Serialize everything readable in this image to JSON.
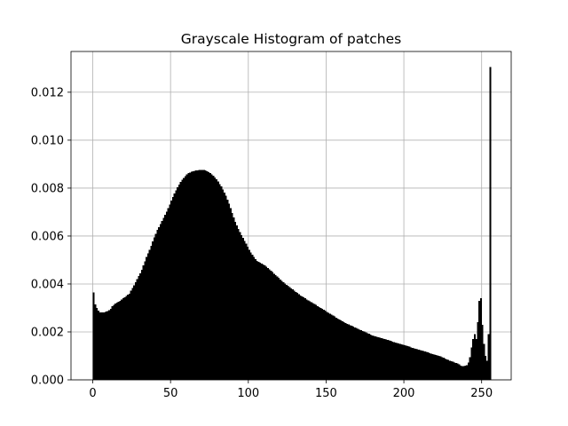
{
  "chart_data": {
    "type": "bar",
    "title": "Grayscale Histogram of patches",
    "xlabel": "",
    "ylabel": "",
    "xlim": [
      -14,
      269
    ],
    "ylim": [
      0,
      0.0137
    ],
    "grid": true,
    "bar_color": "#000000",
    "grid_color": "#b0b0b0",
    "x_ticks": [
      0,
      50,
      100,
      150,
      200,
      250
    ],
    "y_ticks": [
      0.0,
      0.002,
      0.004,
      0.006,
      0.008,
      0.01,
      0.012
    ],
    "x_tick_labels": [
      "0",
      "50",
      "100",
      "150",
      "200",
      "250"
    ],
    "y_tick_labels": [
      "0.000",
      "0.002",
      "0.004",
      "0.006",
      "0.008",
      "0.010",
      "0.012"
    ],
    "bins": 256,
    "bin_start": 0,
    "bin_width": 1,
    "values": [
      0.00365,
      0.00315,
      0.003,
      0.00288,
      0.00282,
      0.00282,
      0.00281,
      0.00282,
      0.00285,
      0.00287,
      0.0029,
      0.00297,
      0.00307,
      0.00313,
      0.00318,
      0.00322,
      0.00325,
      0.0033,
      0.00336,
      0.0034,
      0.00345,
      0.0035,
      0.00355,
      0.0036,
      0.00372,
      0.00383,
      0.00395,
      0.00408,
      0.00421,
      0.00433,
      0.00445,
      0.0046,
      0.00477,
      0.00495,
      0.00512,
      0.00527,
      0.00543,
      0.0056,
      0.00578,
      0.00595,
      0.0061,
      0.00625,
      0.00637,
      0.0065,
      0.00662,
      0.00675,
      0.00688,
      0.00702,
      0.00716,
      0.00732,
      0.00748,
      0.00763,
      0.00777,
      0.0079,
      0.00803,
      0.00815,
      0.00825,
      0.00835,
      0.00843,
      0.0085,
      0.00857,
      0.00862,
      0.00865,
      0.00868,
      0.0087,
      0.00872,
      0.00873,
      0.00874,
      0.00875,
      0.00876,
      0.00876,
      0.00875,
      0.00873,
      0.0087,
      0.00866,
      0.00862,
      0.00857,
      0.00851,
      0.00844,
      0.00836,
      0.00827,
      0.00817,
      0.00807,
      0.00795,
      0.00782,
      0.00768,
      0.00752,
      0.00735,
      0.00717,
      0.00697,
      0.00677,
      0.0066,
      0.00645,
      0.0063,
      0.00617,
      0.00604,
      0.00592,
      0.0058,
      0.00568,
      0.00556,
      0.00543,
      0.00532,
      0.00522,
      0.00512,
      0.00504,
      0.00497,
      0.00492,
      0.00488,
      0.00485,
      0.00482,
      0.00478,
      0.00473,
      0.00467,
      0.00461,
      0.00455,
      0.00449,
      0.00443,
      0.00437,
      0.00431,
      0.00425,
      0.00419,
      0.00413,
      0.00407,
      0.00402,
      0.00397,
      0.00392,
      0.00387,
      0.00382,
      0.00377,
      0.00372,
      0.00367,
      0.00362,
      0.00357,
      0.00352,
      0.00348,
      0.00344,
      0.0034,
      0.00336,
      0.00332,
      0.00328,
      0.00324,
      0.0032,
      0.00316,
      0.00312,
      0.00308,
      0.00304,
      0.003,
      0.00296,
      0.00292,
      0.00288,
      0.00284,
      0.0028,
      0.00276,
      0.00272,
      0.00268,
      0.00264,
      0.0026,
      0.00256,
      0.00252,
      0.00248,
      0.00244,
      0.0024,
      0.00237,
      0.00234,
      0.00231,
      0.00228,
      0.00225,
      0.00222,
      0.00219,
      0.00216,
      0.00213,
      0.0021,
      0.00207,
      0.00204,
      0.00201,
      0.00198,
      0.00195,
      0.00192,
      0.00189,
      0.00186,
      0.00184,
      0.00182,
      0.0018,
      0.00178,
      0.00176,
      0.00174,
      0.00172,
      0.0017,
      0.00168,
      0.00166,
      0.00164,
      0.00162,
      0.0016,
      0.00158,
      0.00156,
      0.00154,
      0.00152,
      0.0015,
      0.00148,
      0.00146,
      0.00144,
      0.00142,
      0.0014,
      0.00138,
      0.00136,
      0.00134,
      0.00132,
      0.0013,
      0.00128,
      0.00126,
      0.00124,
      0.00122,
      0.0012,
      0.00118,
      0.00116,
      0.00114,
      0.00112,
      0.0011,
      0.00108,
      0.00106,
      0.00104,
      0.00102,
      0.001,
      0.00098,
      0.00095,
      0.00092,
      0.00089,
      0.00086,
      0.00083,
      0.0008,
      0.00077,
      0.00075,
      0.00073,
      0.00071,
      0.00068,
      0.00064,
      0.0006,
      0.00058,
      0.00057,
      0.00059,
      0.00062,
      0.00072,
      0.00095,
      0.00135,
      0.0017,
      0.0019,
      0.0017,
      0.0024,
      0.0033,
      0.0034,
      0.0023,
      0.0015,
      0.001,
      0.0008,
      0.0019,
      0.01305
    ]
  }
}
